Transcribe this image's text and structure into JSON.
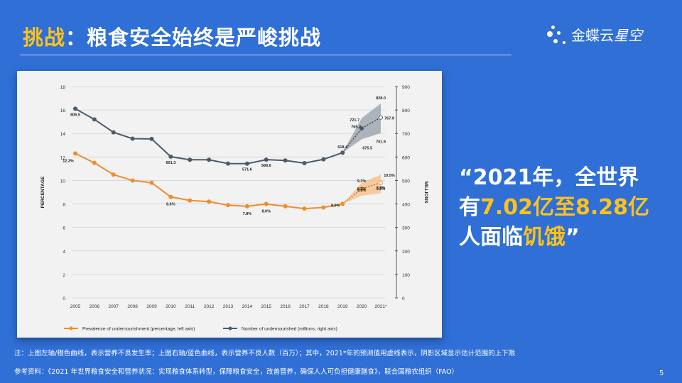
{
  "header": {
    "title_prefix": "挑战",
    "title_main": "：粮食安全始终是严峻挑战"
  },
  "logo": {
    "brand": "金蝶云",
    "product": "星空"
  },
  "chart_data": {
    "type": "line",
    "x": [
      "2005",
      "2006",
      "2007",
      "2008",
      "2009",
      "2010",
      "2011",
      "2012",
      "2013",
      "2014",
      "2015",
      "2016",
      "2017",
      "2018",
      "2019",
      "2020",
      "2021*"
    ],
    "ylabel_left": "PERCENTAGE",
    "ylabel_right": "MILLIONS",
    "ylim_left": [
      0,
      18
    ],
    "yticks_left": [
      "0",
      "2",
      "4",
      "6",
      "8",
      "10",
      "12",
      "14",
      "16",
      "18"
    ],
    "ylim_right": [
      0,
      900
    ],
    "yticks_right": [
      "0",
      "100",
      "200",
      "300",
      "400",
      "500",
      "600",
      "700",
      "800",
      "900"
    ],
    "grid": true,
    "legend_position": "bottom",
    "series": [
      {
        "name": "Prevalence of undernourishment (percentage, left axis)",
        "axis": "left",
        "color": "#f08c2a",
        "values": [
          12.3,
          11.5,
          10.5,
          10.0,
          9.8,
          8.6,
          8.3,
          8.2,
          7.9,
          7.8,
          8.0,
          7.8,
          7.6,
          7.7,
          8.0,
          9.3,
          9.8
        ],
        "projection_from_index": 15,
        "band_upper": {
          "2020": 9.8,
          "2021*": 10.5
        },
        "band_lower": {
          "2020": 8.7,
          "2021*": 8.9
        }
      },
      {
        "name": "Number of undernourished (millions, right axis)",
        "axis": "right",
        "color": "#4d5a68",
        "values": [
          805.5,
          760,
          705,
          678,
          677,
          601.3,
          588,
          588,
          572,
          571.6,
          588.6,
          585,
          574,
          590,
          618.4,
          721.7,
          767.9
        ],
        "projection_from_index": 15,
        "band_upper": {
          "2020": 765.2,
          "2021*": 828.0
        },
        "band_lower": {
          "2020": 675.5,
          "2021*": 701.9
        }
      }
    ],
    "annotations": [
      {
        "series": 1,
        "x": "2005",
        "text": "805.5"
      },
      {
        "series": 1,
        "x": "2010",
        "text": "601.3"
      },
      {
        "series": 1,
        "x": "2014",
        "text": "571.6"
      },
      {
        "series": 1,
        "x": "2015",
        "text": "588.6"
      },
      {
        "series": 1,
        "x": "2019",
        "text": "618.4"
      },
      {
        "series": 1,
        "x": "2020",
        "text": "721.7"
      },
      {
        "series": 1,
        "x": "2020",
        "text": "765.2"
      },
      {
        "series": 1,
        "x": "2020",
        "text": "675.5"
      },
      {
        "series": 1,
        "x": "2021*",
        "text": "828.0"
      },
      {
        "series": 1,
        "x": "2021*",
        "text": "767.9"
      },
      {
        "series": 1,
        "x": "2021*",
        "text": "701.9"
      },
      {
        "series": 0,
        "x": "2005",
        "text": "12.3%"
      },
      {
        "series": 0,
        "x": "2010",
        "text": "8.6%"
      },
      {
        "series": 0,
        "x": "2014",
        "text": "7.8%"
      },
      {
        "series": 0,
        "x": "2015",
        "text": "8.0%"
      },
      {
        "series": 0,
        "x": "2019",
        "text": "8.0%"
      },
      {
        "series": 0,
        "x": "2020",
        "text": "9.3%"
      },
      {
        "series": 0,
        "x": "2020",
        "text": "9.8%"
      },
      {
        "series": 0,
        "x": "2020",
        "text": "8.7%"
      },
      {
        "series": 0,
        "x": "2021*",
        "text": "10.5%"
      },
      {
        "series": 0,
        "x": "2021*",
        "text": "9.8%"
      },
      {
        "series": 0,
        "x": "2021*",
        "text": "8.9%"
      }
    ]
  },
  "quote": {
    "line1": "“2021年，全世界",
    "line2_pre": "有",
    "line2_hl": "7.02亿至8.28亿",
    "line3_pre": "人面临",
    "line3_hl": "饥饿",
    "line3_post": "”"
  },
  "footer": {
    "note": "注：上图左轴/橙色曲线，表示营养不良发生率；上图右轴/蓝色曲线，表示营养不良人数（百万）；其中，2021*年的预测值用虚线表示，阴影区域显示估计范围的上下限",
    "source": "参考资料：《2021 年世界粮食安全和营养状况：实现粮食体系转型，保障粮食安全，改善营养，确保人人可负担健康膳食》，联合国粮农组织（FAO）",
    "page": "5"
  },
  "colors": {
    "background": "#2f6fd6",
    "accent": "#ffc21a",
    "orange_series": "#f08c2a",
    "grey_series": "#4d5a68"
  }
}
